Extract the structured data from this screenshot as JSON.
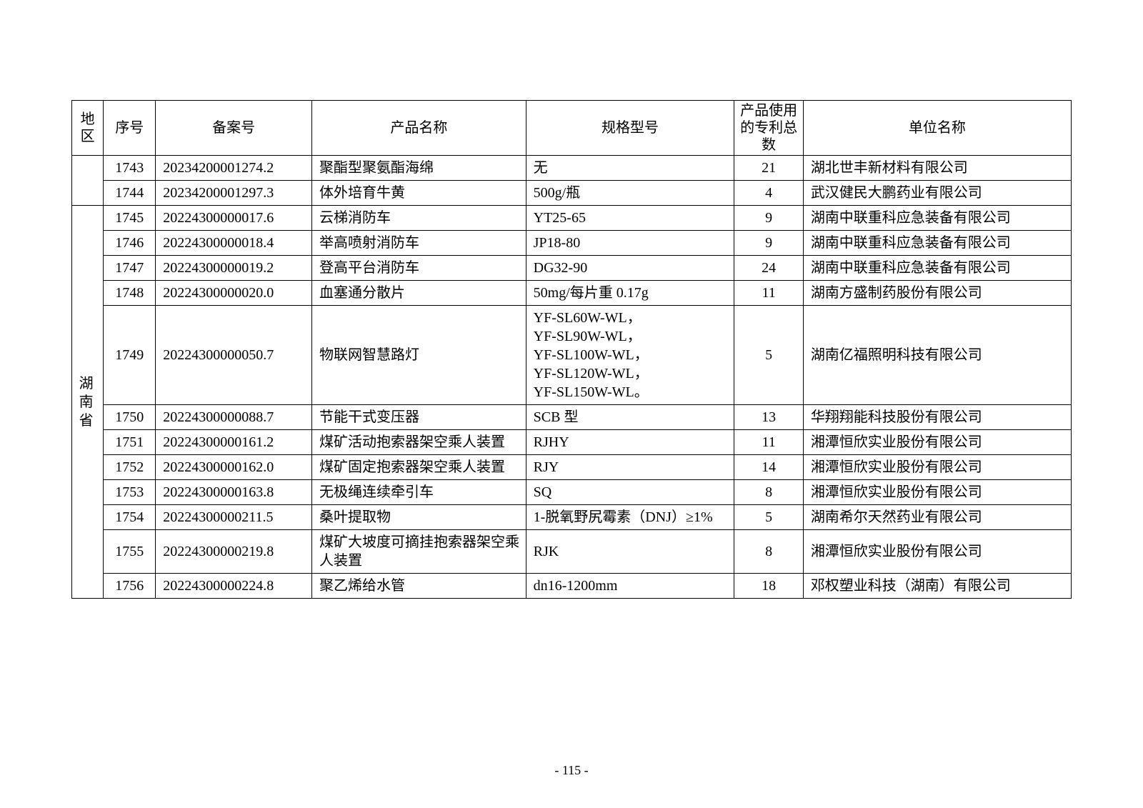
{
  "headers": {
    "region": "地区",
    "seq": "序号",
    "filing": "备案号",
    "product": "产品名称",
    "spec": "规格型号",
    "patent": "产品使用的专利总数",
    "company": "单位名称"
  },
  "region_blank_rows": 2,
  "region_label": "湖南省",
  "rows": [
    {
      "seq": "1743",
      "filing": "20234200001274.2",
      "product": "聚酯型聚氨酯海绵",
      "spec": "无",
      "patent": "21",
      "company": "湖北世丰新材料有限公司"
    },
    {
      "seq": "1744",
      "filing": "20234200001297.3",
      "product": "体外培育牛黄",
      "spec": "500g/瓶",
      "patent": "4",
      "company": "武汉健民大鹏药业有限公司"
    },
    {
      "seq": "1745",
      "filing": "20224300000017.6",
      "product": "云梯消防车",
      "spec": "YT25-65",
      "patent": "9",
      "company": "湖南中联重科应急装备有限公司"
    },
    {
      "seq": "1746",
      "filing": "20224300000018.4",
      "product": "举高喷射消防车",
      "spec": "JP18-80",
      "patent": "9",
      "company": "湖南中联重科应急装备有限公司"
    },
    {
      "seq": "1747",
      "filing": "20224300000019.2",
      "product": "登高平台消防车",
      "spec": "DG32-90",
      "patent": "24",
      "company": "湖南中联重科应急装备有限公司"
    },
    {
      "seq": "1748",
      "filing": "20224300000020.0",
      "product": "血塞通分散片",
      "spec": "50mg/每片重 0.17g",
      "patent": "11",
      "company": "湖南方盛制药股份有限公司"
    },
    {
      "seq": "1749",
      "filing": "20224300000050.7",
      "product": "物联网智慧路灯",
      "spec": "YF-SL60W-WL，\nYF-SL90W-WL，\nYF-SL100W-WL，\nYF-SL120W-WL，\nYF-SL150W-WL。",
      "patent": "5",
      "company": "湖南亿福照明科技有限公司"
    },
    {
      "seq": "1750",
      "filing": "20224300000088.7",
      "product": "节能干式变压器",
      "spec": "SCB 型",
      "patent": "13",
      "company": "华翔翔能科技股份有限公司"
    },
    {
      "seq": "1751",
      "filing": "20224300000161.2",
      "product": "煤矿活动抱索器架空乘人装置",
      "spec": "RJHY",
      "patent": "11",
      "company": "湘潭恒欣实业股份有限公司"
    },
    {
      "seq": "1752",
      "filing": "20224300000162.0",
      "product": "煤矿固定抱索器架空乘人装置",
      "spec": "RJY",
      "patent": "14",
      "company": "湘潭恒欣实业股份有限公司"
    },
    {
      "seq": "1753",
      "filing": "20224300000163.8",
      "product": "无极绳连续牵引车",
      "spec": "SQ",
      "patent": "8",
      "company": "湘潭恒欣实业股份有限公司"
    },
    {
      "seq": "1754",
      "filing": "20224300000211.5",
      "product": "桑叶提取物",
      "spec": "1-脱氧野尻霉素（DNJ）≥1%",
      "patent": "5",
      "company": "湖南希尔天然药业有限公司"
    },
    {
      "seq": "1755",
      "filing": "20224300000219.8",
      "product": "煤矿大坡度可摘挂抱索器架空乘人装置",
      "spec": "RJK",
      "patent": "8",
      "company": "湘潭恒欣实业股份有限公司"
    },
    {
      "seq": "1756",
      "filing": "20224300000224.8",
      "product": "聚乙烯给水管",
      "spec": "dn16-1200mm",
      "patent": "18",
      "company": "邓权塑业科技（湖南）有限公司"
    }
  ],
  "page_number": "- 115 -"
}
